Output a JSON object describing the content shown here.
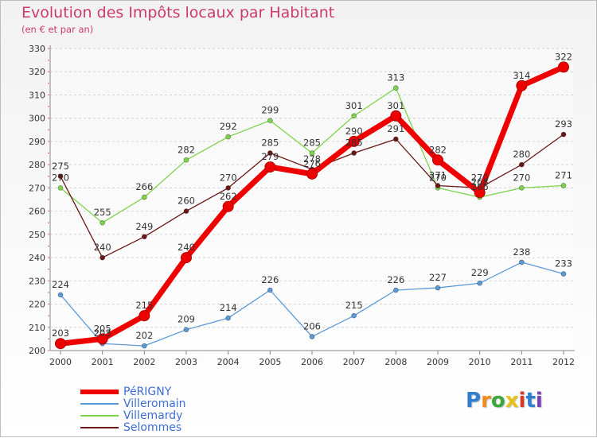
{
  "chart_data": {
    "type": "line",
    "title": "Evolution des Impôts locaux par Habitant",
    "subtitle": "(en € et par an)",
    "xlabel": "",
    "ylabel": "",
    "categories": [
      "2000",
      "2001",
      "2002",
      "2003",
      "2004",
      "2005",
      "2006",
      "2007",
      "2008",
      "2009",
      "2010",
      "2011",
      "2012"
    ],
    "ylim": [
      200,
      330
    ],
    "yticks": [
      200,
      210,
      220,
      230,
      240,
      250,
      260,
      270,
      280,
      290,
      300,
      310,
      320,
      330
    ],
    "grid": true,
    "legend_position": "bottom-left",
    "series": [
      {
        "name": "Villemardy",
        "color": "#7dd34a",
        "values": [
          270,
          255,
          266,
          282,
          292,
          299,
          285,
          301,
          313,
          270,
          266,
          270,
          271
        ]
      },
      {
        "name": "Selommes",
        "color": "#6b1616",
        "values": [
          275,
          240,
          249,
          260,
          270,
          285,
          278,
          285,
          291,
          271,
          270,
          280,
          293
        ]
      },
      {
        "name": "Villeromain",
        "color": "#5a9ad6",
        "values": [
          224,
          203,
          202,
          209,
          214,
          226,
          206,
          215,
          226,
          227,
          229,
          238,
          233
        ]
      },
      {
        "name": "PéRIGNY",
        "color": "#ee0000",
        "values": [
          203,
          205,
          215,
          240,
          262,
          279,
          276,
          290,
          301,
          282,
          268,
          314,
          322
        ]
      }
    ]
  },
  "legend": [
    {
      "name": "PéRIGNY",
      "color": "#ee0000"
    },
    {
      "name": "Villeromain",
      "color": "#5a9ad6"
    },
    {
      "name": "Villemardy",
      "color": "#7dd34a"
    },
    {
      "name": "Selommes",
      "color": "#6b1616"
    }
  ],
  "logo": {
    "text": "Proxiti"
  }
}
